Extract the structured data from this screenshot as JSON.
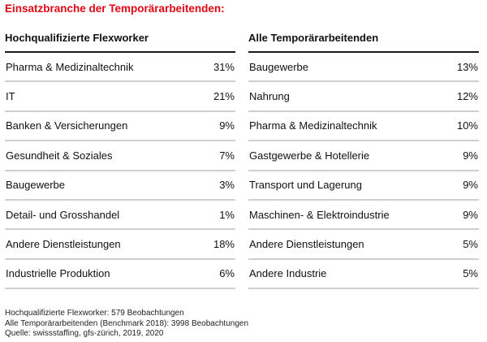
{
  "title": "Einsatzbranche der Temporärarbeitenden:",
  "columns": [
    {
      "header": "Hochqualifizierte Flexworker",
      "rows": [
        {
          "label": "Pharma & Medizinaltechnik",
          "value": "31%"
        },
        {
          "label": "IT",
          "value": "21%"
        },
        {
          "label": "Banken & Versicherungen",
          "value": "9%"
        },
        {
          "label": "Gesundheit & Soziales",
          "value": "7%"
        },
        {
          "label": "Baugewerbe",
          "value": "3%"
        },
        {
          "label": "Detail- und Grosshandel",
          "value": "1%"
        },
        {
          "label": "Andere Dienstleistungen",
          "value": "18%"
        },
        {
          "label": "Industrielle Produktion",
          "value": "6%"
        }
      ]
    },
    {
      "header": "Alle Temporärarbeitenden",
      "rows": [
        {
          "label": "Baugewerbe",
          "value": "13%"
        },
        {
          "label": "Nahrung",
          "value": "12%"
        },
        {
          "label": "Pharma & Medizinaltechnik",
          "value": "10%"
        },
        {
          "label": "Gastgewerbe & Hotellerie",
          "value": "9%"
        },
        {
          "label": "Transport und Lagerung",
          "value": "9%"
        },
        {
          "label": "Maschinen- & Elektroindustrie",
          "value": "9%"
        },
        {
          "label": "Andere Dienstleistungen",
          "value": "5%"
        },
        {
          "label": "Andere Industrie",
          "value": "5%"
        }
      ]
    }
  ],
  "notes": [
    "Hochqualifizierte Flexworker: 579 Beobachtungen",
    "Alle Temporärarbeitenden (Benchmark 2018): 3998 Beobachtungen",
    "Quelle: swissstaffing, gfs-zürich, 2019, 2020"
  ],
  "colors": {
    "title": "#e30613",
    "text": "#111111",
    "header_rule": "#1a1a1a",
    "row_rule": "#cfcfcf"
  }
}
